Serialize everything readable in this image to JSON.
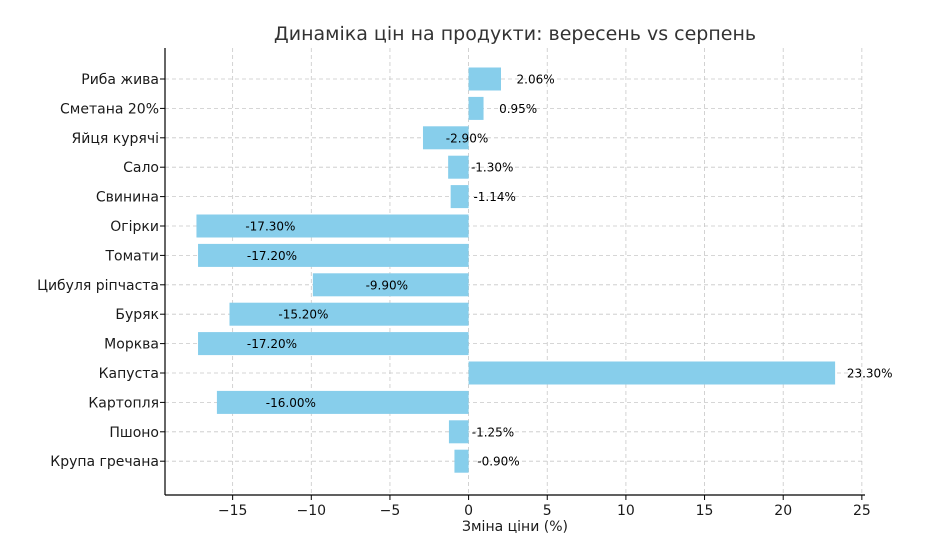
{
  "chart_data": {
    "type": "bar",
    "orientation": "horizontal",
    "title": "Динаміка цін на продукти: вересень vs серпень",
    "xlabel": "Зміна ціни (%)",
    "ylabel": "",
    "xlim": [
      -19.3,
      25.2
    ],
    "xticks": [
      -15,
      -10,
      -5,
      0,
      5,
      10,
      15,
      20,
      25
    ],
    "xtick_labels": [
      "−15",
      "−10",
      "−5",
      "0",
      "5",
      "10",
      "15",
      "20",
      "25"
    ],
    "grid": true,
    "bar_color": "#87ceeb",
    "categories": [
      "Риба жива",
      "Сметана 20%",
      "Яйця курячі",
      "Сало",
      "Свинина",
      "Огірки",
      "Томати",
      "Цибуля ріпчаста",
      "Буряк",
      "Морква",
      "Капуста",
      "Картопля",
      "Пшоно",
      "Крупа гречана"
    ],
    "values": [
      2.06,
      0.95,
      -2.9,
      -1.3,
      -1.14,
      -17.3,
      -17.2,
      -9.9,
      -15.2,
      -17.2,
      23.3,
      -16.0,
      -1.25,
      -0.9
    ],
    "data_labels": [
      "2.06%",
      "0.95%",
      "-2.90%",
      "-1.30%",
      "-1.14%",
      "-17.30%",
      "-17.20%",
      "-9.90%",
      "-15.20%",
      "-17.20%",
      "23.30%",
      "-16.00%",
      "-1.25%",
      "-0.90%"
    ]
  }
}
